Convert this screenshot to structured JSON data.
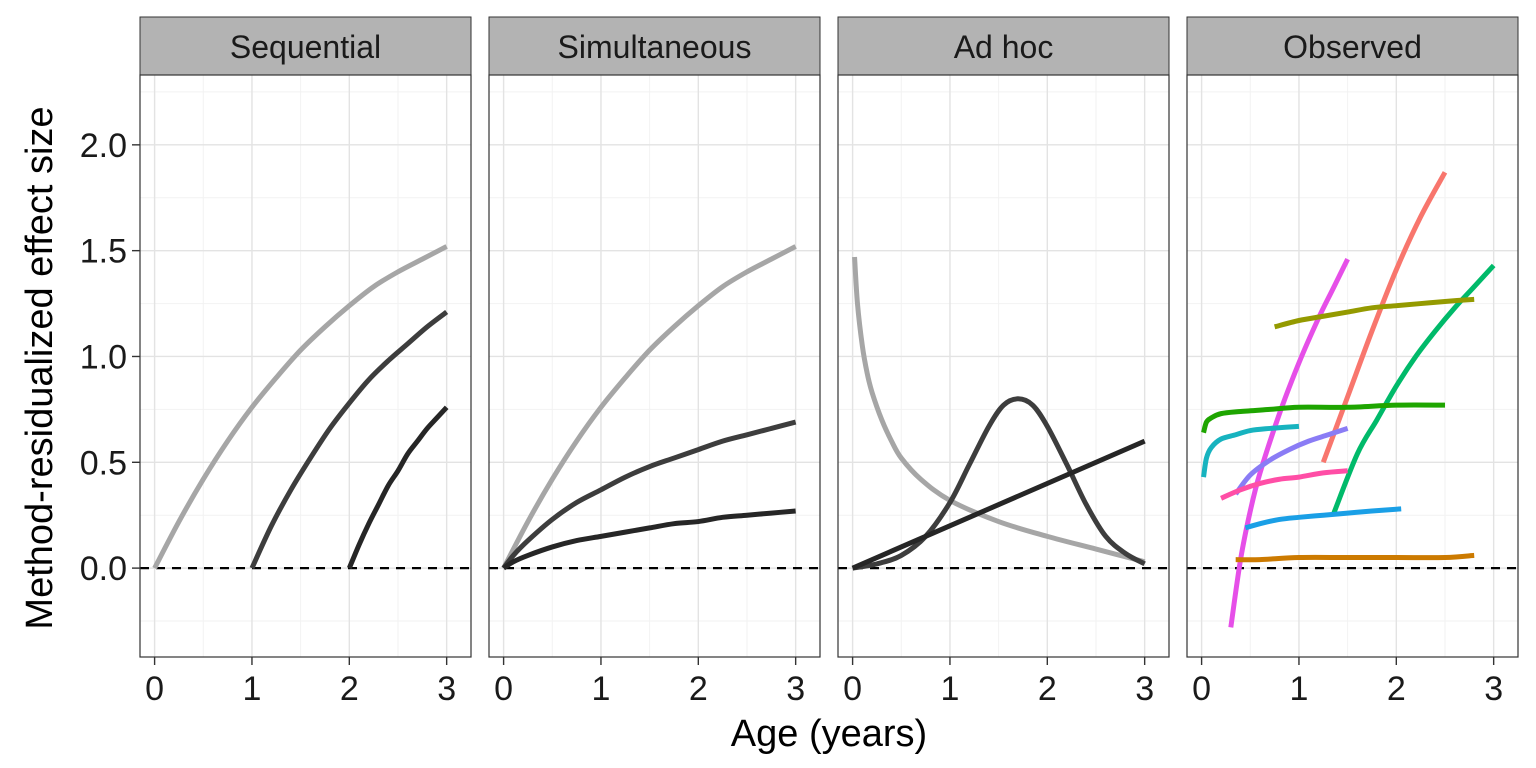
{
  "chart_data": {
    "type": "line",
    "xlabel": "Age (years)",
    "ylabel": "Method-residualized effect size",
    "xlim": [
      -0.15,
      3.25
    ],
    "ylim": [
      -0.42,
      2.33
    ],
    "x_ticks": [
      "0",
      "1",
      "2",
      "3"
    ],
    "y_ticks": [
      "0.0",
      "0.5",
      "1.0",
      "1.5",
      "2.0"
    ],
    "x_tick_values": [
      0,
      1,
      2,
      3
    ],
    "y_tick_values": [
      0.0,
      0.5,
      1.0,
      1.5,
      2.0
    ],
    "reference_line": {
      "y": 0,
      "style": "dashed"
    },
    "grid": true,
    "legend": "none",
    "panels": [
      {
        "title": "Sequential",
        "series": [
          {
            "color": "#a6a6a6",
            "x": [
              0,
              0.25,
              0.5,
              0.75,
              1.0,
              1.25,
              1.5,
              1.75,
              2.0,
              2.25,
              2.5,
              2.75,
              3.0
            ],
            "y": [
              0,
              0.22,
              0.42,
              0.6,
              0.76,
              0.9,
              1.03,
              1.14,
              1.24,
              1.33,
              1.4,
              1.46,
              1.52
            ]
          },
          {
            "color": "#3d3d3d",
            "x": [
              1.0,
              1.2,
              1.4,
              1.6,
              1.8,
              2.0,
              2.2,
              2.4,
              2.6,
              2.8,
              3.0
            ],
            "y": [
              0,
              0.2,
              0.37,
              0.52,
              0.66,
              0.78,
              0.89,
              0.98,
              1.06,
              1.14,
              1.21
            ]
          },
          {
            "color": "#262626",
            "x": [
              2.0,
              2.1,
              2.2,
              2.3,
              2.4,
              2.5,
              2.6,
              2.7,
              2.8,
              2.9,
              3.0
            ],
            "y": [
              0,
              0.11,
              0.21,
              0.3,
              0.39,
              0.46,
              0.54,
              0.6,
              0.66,
              0.71,
              0.76
            ]
          }
        ]
      },
      {
        "title": "Simultaneous",
        "series": [
          {
            "color": "#a6a6a6",
            "x": [
              0,
              0.25,
              0.5,
              0.75,
              1.0,
              1.25,
              1.5,
              1.75,
              2.0,
              2.25,
              2.5,
              2.75,
              3.0
            ],
            "y": [
              0,
              0.22,
              0.42,
              0.6,
              0.76,
              0.9,
              1.03,
              1.14,
              1.24,
              1.33,
              1.4,
              1.46,
              1.52
            ]
          },
          {
            "color": "#3d3d3d",
            "x": [
              0,
              0.1,
              0.25,
              0.5,
              0.75,
              1.0,
              1.25,
              1.5,
              1.75,
              2.0,
              2.25,
              2.5,
              2.75,
              3.0
            ],
            "y": [
              0,
              0.06,
              0.13,
              0.23,
              0.31,
              0.37,
              0.43,
              0.48,
              0.52,
              0.56,
              0.6,
              0.63,
              0.66,
              0.69
            ]
          },
          {
            "color": "#262626",
            "x": [
              0,
              0.1,
              0.25,
              0.5,
              0.75,
              1.0,
              1.25,
              1.5,
              1.75,
              2.0,
              2.25,
              2.5,
              2.75,
              3.0
            ],
            "y": [
              0,
              0.03,
              0.06,
              0.1,
              0.13,
              0.15,
              0.17,
              0.19,
              0.21,
              0.22,
              0.24,
              0.25,
              0.26,
              0.27
            ]
          }
        ]
      },
      {
        "title": "Ad hoc",
        "series": [
          {
            "color": "#a6a6a6",
            "x": [
              0.02,
              0.05,
              0.1,
              0.15,
              0.2,
              0.3,
              0.4,
              0.5,
              0.7,
              1.0,
              1.5,
              2.0,
              2.5,
              3.0
            ],
            "y": [
              1.47,
              1.25,
              1.05,
              0.92,
              0.83,
              0.7,
              0.6,
              0.52,
              0.42,
              0.32,
              0.22,
              0.15,
              0.09,
              0.03
            ]
          },
          {
            "color": "#3d3d3d",
            "x": [
              0,
              0.25,
              0.5,
              0.75,
              1.0,
              1.2,
              1.4,
              1.55,
              1.7,
              1.85,
              2.0,
              2.2,
              2.4,
              2.6,
              2.8,
              3.0
            ],
            "y": [
              0,
              0.02,
              0.06,
              0.15,
              0.31,
              0.49,
              0.67,
              0.77,
              0.8,
              0.77,
              0.67,
              0.49,
              0.3,
              0.15,
              0.07,
              0.02
            ]
          },
          {
            "color": "#262626",
            "x": [
              0,
              3.0
            ],
            "y": [
              0,
              0.6
            ]
          }
        ]
      },
      {
        "title": "Observed",
        "series": [
          {
            "color": "#f8766d",
            "x": [
              1.25,
              1.5,
              1.75,
              2.0,
              2.25,
              2.5
            ],
            "y": [
              0.5,
              0.81,
              1.12,
              1.41,
              1.66,
              1.87
            ]
          },
          {
            "color": "#e64fe8",
            "x": [
              0.3,
              0.4,
              0.5,
              0.6,
              0.8,
              1.0,
              1.2,
              1.35,
              1.5
            ],
            "y": [
              -0.28,
              0.04,
              0.27,
              0.45,
              0.73,
              0.97,
              1.18,
              1.32,
              1.46
            ]
          },
          {
            "color": "#00ba6a",
            "x": [
              1.35,
              1.6,
              1.8,
              2.0,
              2.2,
              2.4,
              2.6,
              2.8,
              3.0
            ],
            "y": [
              0.25,
              0.54,
              0.7,
              0.86,
              1.0,
              1.12,
              1.23,
              1.33,
              1.43
            ]
          },
          {
            "color": "#949a00",
            "x": [
              0.75,
              1.0,
              1.25,
              1.5,
              1.75,
              2.0,
              2.25,
              2.5,
              2.8
            ],
            "y": [
              1.14,
              1.17,
              1.19,
              1.21,
              1.23,
              1.24,
              1.25,
              1.26,
              1.27
            ]
          },
          {
            "color": "#1ea500",
            "x": [
              0.02,
              0.05,
              0.1,
              0.2,
              0.4,
              0.7,
              1.0,
              1.5,
              2.0,
              2.5
            ],
            "y": [
              0.64,
              0.69,
              0.71,
              0.73,
              0.74,
              0.75,
              0.76,
              0.76,
              0.77,
              0.77
            ]
          },
          {
            "color": "#17b3bf",
            "x": [
              0.02,
              0.05,
              0.1,
              0.2,
              0.35,
              0.5,
              0.7,
              1.0
            ],
            "y": [
              0.43,
              0.52,
              0.57,
              0.61,
              0.63,
              0.65,
              0.66,
              0.67
            ]
          },
          {
            "color": "#8a7cf5",
            "x": [
              0.35,
              0.5,
              0.7,
              0.9,
              1.1,
              1.3,
              1.5
            ],
            "y": [
              0.35,
              0.44,
              0.51,
              0.56,
              0.6,
              0.63,
              0.66
            ]
          },
          {
            "color": "#ff4ea6",
            "x": [
              0.2,
              0.4,
              0.6,
              0.8,
              1.0,
              1.25,
              1.5
            ],
            "y": [
              0.33,
              0.37,
              0.4,
              0.42,
              0.43,
              0.45,
              0.46
            ]
          },
          {
            "color": "#1a9fe6",
            "x": [
              0.45,
              0.6,
              0.8,
              1.0,
              1.25,
              1.5,
              1.75,
              2.05
            ],
            "y": [
              0.19,
              0.21,
              0.23,
              0.24,
              0.25,
              0.26,
              0.27,
              0.28
            ]
          },
          {
            "color": "#cc7a00",
            "x": [
              0.35,
              0.6,
              1.0,
              1.5,
              2.0,
              2.5,
              2.8
            ],
            "y": [
              0.04,
              0.04,
              0.05,
              0.05,
              0.05,
              0.05,
              0.06
            ]
          }
        ]
      }
    ]
  }
}
